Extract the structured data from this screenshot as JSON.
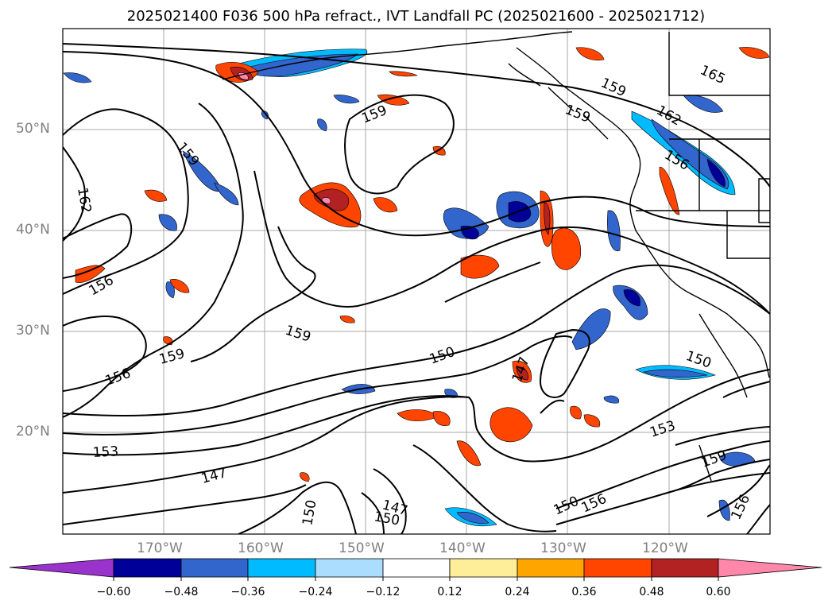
{
  "title": "2025021400 F036 500 hPa refract., IVT Landfall PC (2025021600 - 2025021712)",
  "lat_labels": [
    "50°N",
    "40°N",
    "30°N",
    "20°N"
  ],
  "lon_labels": [
    "170°W",
    "160°W",
    "150°W",
    "140°W",
    "130°W",
    "120°W"
  ],
  "contour_labels": [
    "165",
    "159",
    "162",
    "159",
    "156",
    "159",
    "162",
    "159",
    "156",
    "159",
    "150",
    "150",
    "156",
    "159",
    "147",
    "153",
    "147",
    "150",
    "150",
    "147",
    "150",
    "156",
    "153",
    "159",
    "156"
  ],
  "colorbar": {
    "tick_labels": [
      "−0.60",
      "−0.48",
      "−0.36",
      "−0.24",
      "−0.12",
      "0.12",
      "0.24",
      "0.36",
      "0.48",
      "0.60"
    ],
    "colors": [
      "#9933cc",
      "#000099",
      "#3366cc",
      "#00bbff",
      "#aaddff",
      "#ffffff",
      "#ffee99",
      "#ffa500",
      "#ff4500",
      "#b22222",
      "#ff88aa"
    ]
  }
}
